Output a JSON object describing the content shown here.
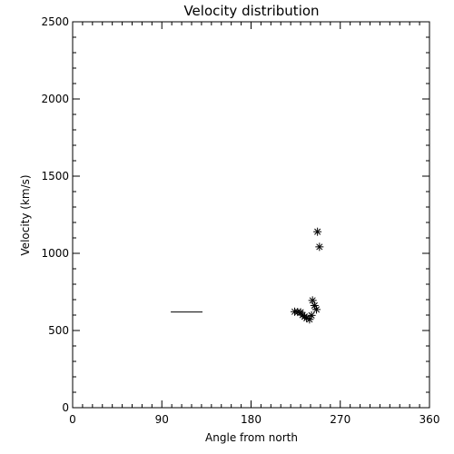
{
  "chart_data": {
    "type": "scatter",
    "title": "Velocity distribution",
    "xlabel": "Angle from north",
    "ylabel": "Velocity (km/s)",
    "xlim": [
      0,
      360
    ],
    "ylim": [
      0,
      2500
    ],
    "x_ticks": [
      "0",
      "90",
      "180",
      "270",
      "360"
    ],
    "y_ticks": [
      "0",
      "500",
      "1000",
      "1500",
      "2000",
      "2500"
    ],
    "grid": false,
    "marker": "asterisk",
    "series": [
      {
        "points": [
          {
            "x": 224,
            "y": 622
          },
          {
            "x": 227,
            "y": 620
          },
          {
            "x": 230,
            "y": 618
          },
          {
            "x": 232,
            "y": 600
          },
          {
            "x": 234,
            "y": 590
          },
          {
            "x": 236,
            "y": 580
          },
          {
            "x": 239,
            "y": 572
          },
          {
            "x": 241,
            "y": 598
          },
          {
            "x": 242,
            "y": 695
          },
          {
            "x": 244,
            "y": 662
          },
          {
            "x": 246,
            "y": 636
          },
          {
            "x": 247,
            "y": 1140
          },
          {
            "x": 249,
            "y": 1042
          }
        ]
      }
    ],
    "segments": [
      {
        "x1": 99,
        "x2": 131,
        "y": 620
      }
    ]
  }
}
